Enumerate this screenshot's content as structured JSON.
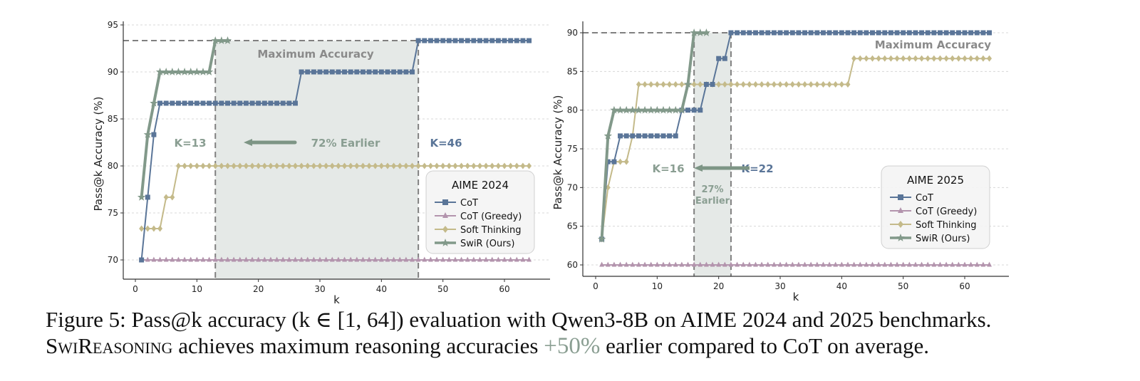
{
  "chart_data": [
    {
      "type": "line",
      "legend_title": "AIME 2024",
      "legend_position": "lower-right",
      "xlabel": "k",
      "ylabel": "Pass@k Accuracy (%)",
      "xlim": [
        -2,
        67
      ],
      "ylim": [
        68,
        95
      ],
      "xticks": [
        0,
        10,
        20,
        30,
        40,
        50,
        60
      ],
      "yticks": [
        70,
        75,
        80,
        85,
        90,
        95
      ],
      "grid": "horizontal-dashed",
      "max_accuracy": 93.33,
      "max_label": "Maximum Accuracy",
      "swir_k": 13,
      "cot_k": 46,
      "swir_k_label": "K=13",
      "cot_k_label": "K=46",
      "earlier_label": "72% Earlier",
      "series": [
        {
          "name": "CoT",
          "color": "#5a7598",
          "marker": "square",
          "steps": [
            [
              1,
              70
            ],
            [
              2,
              76.67
            ],
            [
              3,
              83.33
            ],
            [
              4,
              86.67
            ],
            [
              27,
              90
            ],
            [
              46,
              93.33
            ]
          ],
          "k_end": 64
        },
        {
          "name": "CoT (Greedy)",
          "color": "#b394ad",
          "marker": "triangle",
          "steps": [
            [
              1,
              70
            ]
          ],
          "k_end": 64
        },
        {
          "name": "Soft Thinking",
          "color": "#c4ba8a",
          "marker": "diamond",
          "steps": [
            [
              1,
              73.33
            ],
            [
              5,
              76.67
            ],
            [
              7,
              80
            ]
          ],
          "k_end": 64
        },
        {
          "name": "SwiR (Ours)",
          "color": "#82998a",
          "marker": "star",
          "steps": [
            [
              1,
              76.67
            ],
            [
              2,
              83.33
            ],
            [
              3,
              86.67
            ],
            [
              4,
              90
            ],
            [
              13,
              93.33
            ]
          ],
          "k_end": 15
        }
      ]
    },
    {
      "type": "line",
      "legend_title": "AIME 2025",
      "legend_position": "lower-right",
      "xlabel": "k",
      "ylabel": "Pass@k Accuracy (%)",
      "xlim": [
        -2,
        67
      ],
      "ylim": [
        58.5,
        91.5
      ],
      "xticks": [
        0,
        10,
        20,
        30,
        40,
        50,
        60
      ],
      "yticks": [
        60,
        65,
        70,
        75,
        80,
        85,
        90
      ],
      "grid": "horizontal-dashed",
      "max_accuracy": 90,
      "max_label": "Maximum Accuracy",
      "swir_k": 16,
      "cot_k": 22,
      "swir_k_label": "K=16",
      "cot_k_label": "K=22",
      "earlier_label_line1": "27%",
      "earlier_label_line2": "Earlier",
      "series": [
        {
          "name": "CoT",
          "color": "#5a7598",
          "marker": "square",
          "steps": [
            [
              1,
              63.33
            ],
            [
              2,
              73.33
            ],
            [
              4,
              76.67
            ],
            [
              14,
              80
            ],
            [
              18,
              83.33
            ],
            [
              20,
              86.67
            ],
            [
              22,
              90
            ]
          ],
          "k_end": 64
        },
        {
          "name": "CoT (Greedy)",
          "color": "#b394ad",
          "marker": "triangle",
          "steps": [
            [
              1,
              60
            ]
          ],
          "k_end": 64
        },
        {
          "name": "Soft Thinking",
          "color": "#c4ba8a",
          "marker": "diamond",
          "steps": [
            [
              1,
              63.33
            ],
            [
              2,
              70
            ],
            [
              3,
              73.33
            ],
            [
              6,
              76.67
            ],
            [
              7,
              83.33
            ],
            [
              42,
              86.67
            ]
          ],
          "k_end": 64
        },
        {
          "name": "SwiR (Ours)",
          "color": "#82998a",
          "marker": "star",
          "steps": [
            [
              1,
              63.33
            ],
            [
              2,
              76.67
            ],
            [
              3,
              80
            ],
            [
              15,
              83.33
            ],
            [
              16,
              90
            ]
          ],
          "k_end": 18
        }
      ]
    }
  ],
  "caption": {
    "line1": "Figure 5: Pass@k accuracy (k ∈ [1, 64]) evaluation with Qwen3-8B on AIME 2024 and 2025 benchmarks.",
    "line2_method": "SwiReasoning",
    "line2_a": " achieves maximum reasoning accuracies ",
    "line2_highlight": "+50%",
    "line2_b": " earlier compared to CoT on average."
  }
}
